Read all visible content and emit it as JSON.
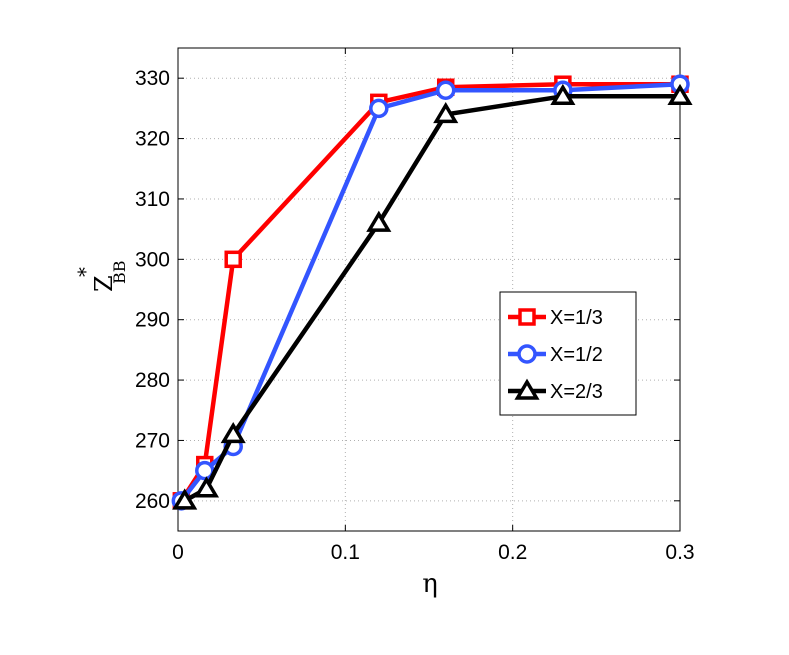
{
  "chart_data": {
    "type": "line",
    "xlabel": "η",
    "ylabel": {
      "base": "Z",
      "superscript": "*",
      "subscript": "BB"
    },
    "xlim": [
      0,
      0.3
    ],
    "ylim": [
      255,
      335
    ],
    "x_ticks": [
      0,
      0.1,
      0.2,
      0.3
    ],
    "x_tick_labels": [
      "0",
      "0.1",
      "0.2",
      "0.3"
    ],
    "y_ticks": [
      260,
      270,
      280,
      290,
      300,
      310,
      320,
      330
    ],
    "y_tick_labels": [
      "260",
      "270",
      "280",
      "290",
      "300",
      "310",
      "320",
      "330"
    ],
    "grid": true,
    "legend_position": "center-right",
    "series": [
      {
        "name": "X=1/3",
        "color": "#ff0000",
        "marker": "square",
        "x": [
          0.002,
          0.016,
          0.033,
          0.12,
          0.16,
          0.23,
          0.3
        ],
        "y": [
          260,
          266,
          300,
          326,
          328.5,
          329,
          329
        ]
      },
      {
        "name": "X=1/2",
        "color": "#3355ff",
        "marker": "circle",
        "x": [
          0.002,
          0.016,
          0.033,
          0.12,
          0.16,
          0.23,
          0.3
        ],
        "y": [
          260,
          265,
          269,
          325,
          328,
          328,
          329
        ]
      },
      {
        "name": "X=2/3",
        "color": "#000000",
        "marker": "triangle",
        "x": [
          0.004,
          0.017,
          0.033,
          0.12,
          0.16,
          0.23,
          0.3
        ],
        "y": [
          260,
          262,
          271,
          306,
          324,
          327,
          327
        ]
      }
    ]
  }
}
